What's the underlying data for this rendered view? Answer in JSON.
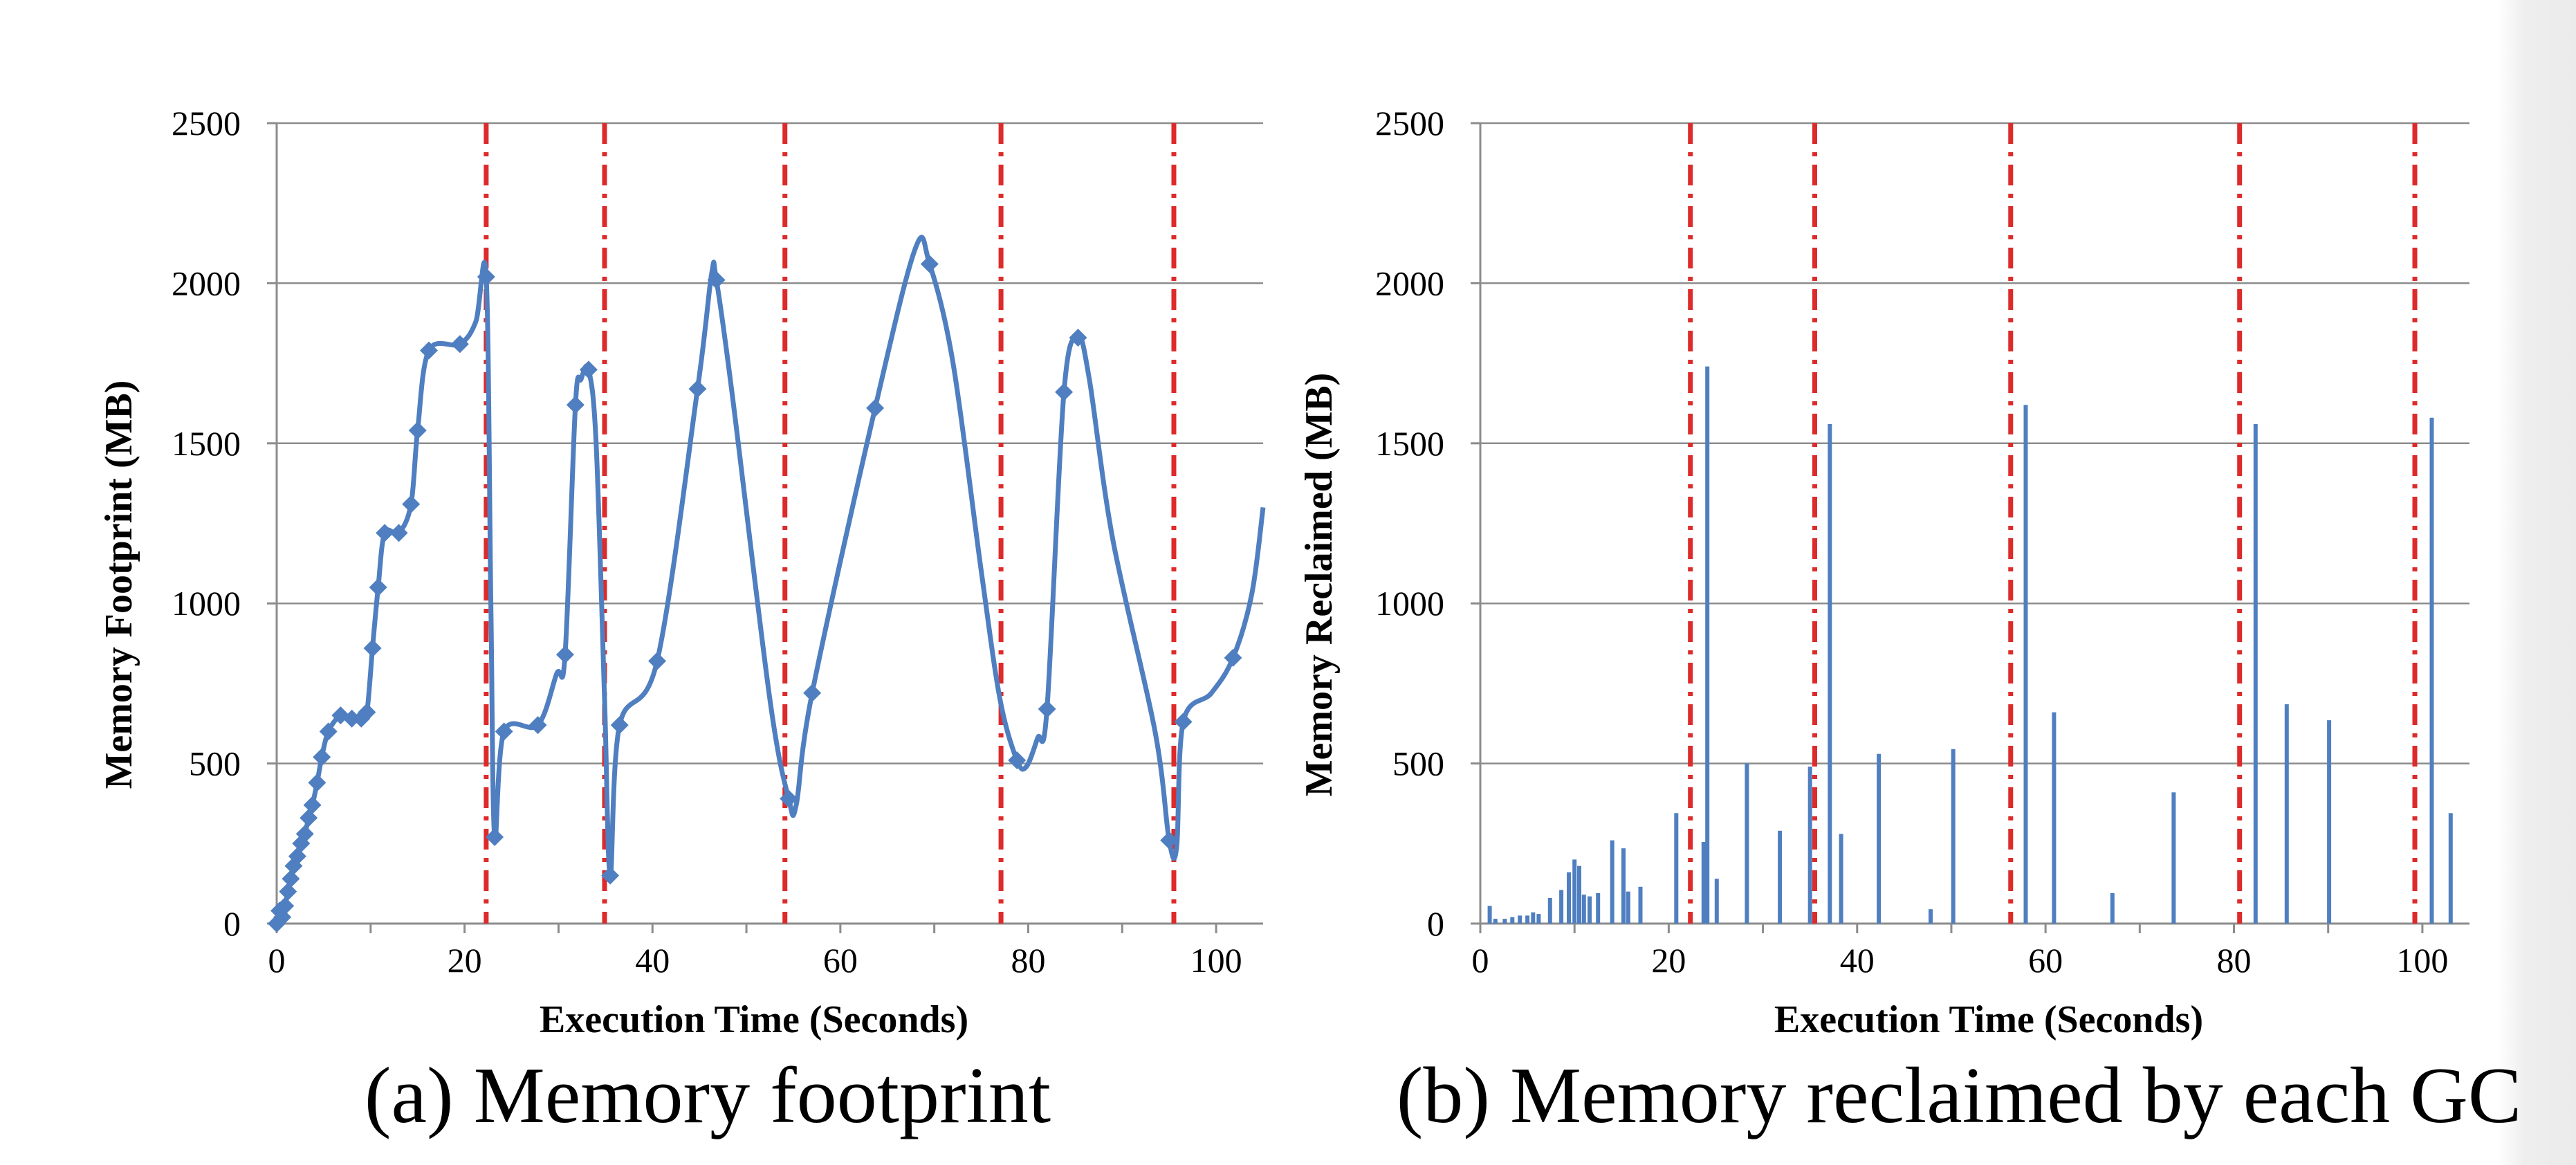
{
  "chart_data": [
    {
      "type": "line",
      "caption": "(a) Memory footprint",
      "xlabel": "Execution Time (Seconds)",
      "ylabel": "Memory Footprint (MB)",
      "xlim": [
        0,
        105
      ],
      "ylim": [
        0,
        2500
      ],
      "xticks": [
        0,
        20,
        40,
        60,
        80,
        100
      ],
      "yticks": [
        0,
        500,
        1000,
        1500,
        2000,
        2500
      ],
      "grid": "horizontal",
      "series_color": "#4f7fc0",
      "marker": "diamond",
      "gc_lines": {
        "x": [
          22.3,
          34.9,
          54.1,
          77.1,
          95.5
        ],
        "color": "#dd2a2a",
        "style": "dash-dot"
      },
      "series": [
        {
          "points": [
            [
              0.0,
              0
            ],
            [
              0.3,
              40
            ],
            [
              0.6,
              20
            ],
            [
              0.9,
              55
            ],
            [
              1.2,
              100
            ],
            [
              1.5,
              140
            ],
            [
              1.8,
              180
            ],
            [
              2.2,
              210
            ],
            [
              2.6,
              250
            ],
            [
              3.0,
              280
            ],
            [
              3.4,
              330
            ],
            [
              3.8,
              370
            ],
            [
              4.3,
              440
            ],
            [
              4.8,
              520
            ],
            [
              5.5,
              600
            ],
            [
              6.8,
              650
            ],
            [
              8.0,
              640
            ],
            [
              9.0,
              640
            ],
            [
              9.6,
              660
            ],
            [
              10.2,
              860
            ],
            [
              10.8,
              1050
            ],
            [
              11.5,
              1220
            ],
            [
              13.0,
              1220
            ],
            [
              14.3,
              1310
            ],
            [
              15.0,
              1540
            ],
            [
              16.2,
              1790
            ],
            [
              19.5,
              1810
            ],
            [
              21.2,
              1880
            ],
            [
              22.3,
              2020
            ],
            [
              22.8,
              1000
            ],
            [
              23.2,
              270
            ],
            [
              24.2,
              600
            ],
            [
              27.8,
              620
            ],
            [
              29.8,
              780
            ],
            [
              30.7,
              840
            ],
            [
              31.8,
              1620
            ],
            [
              32.4,
              1700
            ],
            [
              33.2,
              1730
            ],
            [
              34.0,
              1500
            ],
            [
              34.9,
              700
            ],
            [
              35.5,
              150
            ],
            [
              36.5,
              620
            ],
            [
              40.5,
              820
            ],
            [
              44.8,
              1670
            ],
            [
              46.3,
              2030
            ],
            [
              46.8,
              2010
            ],
            [
              48.5,
              1650
            ],
            [
              52.5,
              700
            ],
            [
              54.5,
              390
            ],
            [
              55.3,
              370
            ],
            [
              57.0,
              720
            ],
            [
              63.7,
              1610
            ],
            [
              68.0,
              2110
            ],
            [
              69.5,
              2060
            ],
            [
              72.0,
              1750
            ],
            [
              75.0,
              1100
            ],
            [
              77.0,
              700
            ],
            [
              78.8,
              510
            ],
            [
              79.8,
              490
            ],
            [
              81.0,
              580
            ],
            [
              82.0,
              670
            ],
            [
              83.8,
              1660
            ],
            [
              85.3,
              1830
            ],
            [
              86.5,
              1700
            ],
            [
              89.0,
              1200
            ],
            [
              93.5,
              600
            ],
            [
              95.0,
              260
            ],
            [
              95.8,
              240
            ],
            [
              96.5,
              630
            ],
            [
              99.5,
              720
            ],
            [
              101.8,
              830
            ],
            [
              103.8,
              1030
            ],
            [
              105.0,
              1300
            ]
          ],
          "markers": [
            [
              0.0,
              0
            ],
            [
              0.3,
              40
            ],
            [
              0.6,
              20
            ],
            [
              0.9,
              55
            ],
            [
              1.2,
              100
            ],
            [
              1.5,
              140
            ],
            [
              1.8,
              180
            ],
            [
              2.2,
              210
            ],
            [
              2.6,
              250
            ],
            [
              3.0,
              280
            ],
            [
              3.4,
              330
            ],
            [
              3.8,
              370
            ],
            [
              4.3,
              440
            ],
            [
              4.8,
              520
            ],
            [
              5.5,
              600
            ],
            [
              6.8,
              650
            ],
            [
              8.0,
              640
            ],
            [
              9.0,
              640
            ],
            [
              9.6,
              660
            ],
            [
              10.2,
              860
            ],
            [
              10.8,
              1050
            ],
            [
              11.5,
              1220
            ],
            [
              13.0,
              1220
            ],
            [
              14.3,
              1310
            ],
            [
              15.0,
              1540
            ],
            [
              16.2,
              1790
            ],
            [
              19.5,
              1810
            ],
            [
              22.3,
              2020
            ],
            [
              23.2,
              270
            ],
            [
              24.2,
              600
            ],
            [
              27.8,
              620
            ],
            [
              30.7,
              840
            ],
            [
              31.8,
              1620
            ],
            [
              33.2,
              1730
            ],
            [
              35.5,
              150
            ],
            [
              36.5,
              620
            ],
            [
              40.5,
              820
            ],
            [
              44.8,
              1670
            ],
            [
              46.8,
              2010
            ],
            [
              54.5,
              390
            ],
            [
              57.0,
              720
            ],
            [
              63.7,
              1610
            ],
            [
              69.5,
              2060
            ],
            [
              78.8,
              510
            ],
            [
              82.0,
              670
            ],
            [
              83.8,
              1660
            ],
            [
              85.3,
              1830
            ],
            [
              95.0,
              260
            ],
            [
              96.5,
              630
            ],
            [
              101.8,
              830
            ]
          ]
        }
      ]
    },
    {
      "type": "bar",
      "caption": "(b) Memory reclaimed by each GC",
      "xlabel": "Execution Time (Seconds)",
      "ylabel": "Memory Reclaimed (MB)",
      "xlim": [
        0,
        105
      ],
      "ylim": [
        0,
        2500
      ],
      "xticks": [
        0,
        20,
        40,
        60,
        80,
        100
      ],
      "yticks": [
        0,
        500,
        1000,
        1500,
        2000,
        2500
      ],
      "grid": "horizontal",
      "series_color": "#4f7fc0",
      "gc_lines": {
        "x": [
          22.3,
          35.5,
          56.3,
          80.6,
          99.2
        ],
        "color": "#dd2a2a",
        "style": "dash-dot"
      },
      "bars": [
        [
          1.0,
          55
        ],
        [
          1.6,
          15
        ],
        [
          2.6,
          15
        ],
        [
          3.4,
          20
        ],
        [
          4.2,
          25
        ],
        [
          5.0,
          25
        ],
        [
          5.6,
          35
        ],
        [
          6.2,
          30
        ],
        [
          7.4,
          80
        ],
        [
          8.6,
          105
        ],
        [
          9.4,
          160
        ],
        [
          10.0,
          200
        ],
        [
          10.5,
          180
        ],
        [
          11.0,
          90
        ],
        [
          11.6,
          85
        ],
        [
          12.5,
          95
        ],
        [
          14.0,
          260
        ],
        [
          15.2,
          235
        ],
        [
          15.7,
          100
        ],
        [
          17.0,
          115
        ],
        [
          20.8,
          345
        ],
        [
          23.7,
          255
        ],
        [
          24.1,
          1740
        ],
        [
          25.1,
          140
        ],
        [
          28.3,
          500
        ],
        [
          31.8,
          290
        ],
        [
          35.0,
          490
        ],
        [
          37.1,
          1560
        ],
        [
          38.3,
          280
        ],
        [
          42.3,
          530
        ],
        [
          47.8,
          45
        ],
        [
          50.2,
          545
        ],
        [
          57.9,
          1620
        ],
        [
          60.9,
          660
        ],
        [
          67.1,
          95
        ],
        [
          73.6,
          410
        ],
        [
          82.3,
          1560
        ],
        [
          85.6,
          685
        ],
        [
          90.1,
          635
        ],
        [
          101.0,
          1580
        ],
        [
          103.0,
          345
        ]
      ]
    }
  ]
}
